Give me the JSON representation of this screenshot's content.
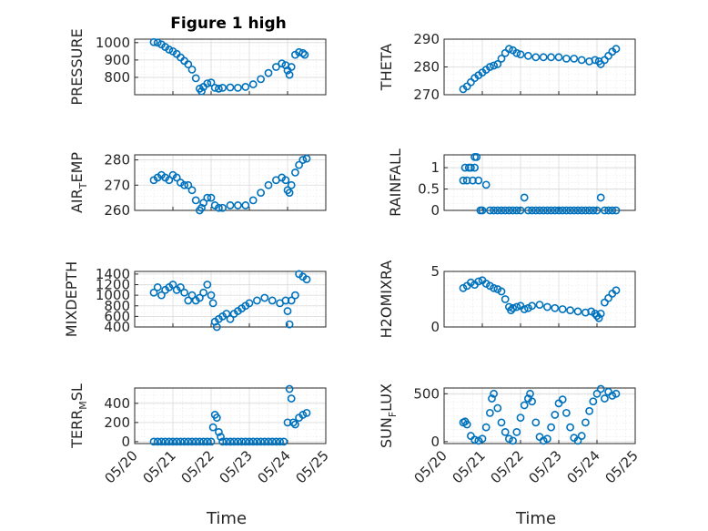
{
  "figure": {
    "title": "Figure 1 high",
    "marker_color": "#0072BD"
  },
  "chart_data": [
    {
      "id": "pressure",
      "type": "scatter",
      "ylabel": "PRESSURE",
      "xlabel": "",
      "xlim": [
        "05/20",
        "05/25"
      ],
      "ylim": [
        700,
        1020
      ],
      "yticks": [
        800,
        900,
        1000
      ],
      "xticklabels_visible": false,
      "points": [
        [
          0.5,
          1003
        ],
        [
          0.6,
          1000
        ],
        [
          0.7,
          990
        ],
        [
          0.8,
          975
        ],
        [
          0.9,
          960
        ],
        [
          1.0,
          950
        ],
        [
          1.1,
          935
        ],
        [
          1.2,
          915
        ],
        [
          1.3,
          895
        ],
        [
          1.4,
          875
        ],
        [
          1.5,
          845
        ],
        [
          1.6,
          795
        ],
        [
          1.7,
          735
        ],
        [
          1.75,
          720
        ],
        [
          1.8,
          745
        ],
        [
          1.9,
          765
        ],
        [
          2.0,
          770
        ],
        [
          2.1,
          740
        ],
        [
          2.2,
          735
        ],
        [
          2.3,
          740
        ],
        [
          2.5,
          742
        ],
        [
          2.7,
          740
        ],
        [
          2.9,
          745
        ],
        [
          3.1,
          760
        ],
        [
          3.3,
          790
        ],
        [
          3.5,
          825
        ],
        [
          3.7,
          860
        ],
        [
          3.85,
          880
        ],
        [
          3.95,
          870
        ],
        [
          4.0,
          840
        ],
        [
          4.05,
          815
        ],
        [
          4.1,
          860
        ],
        [
          4.2,
          930
        ],
        [
          4.3,
          945
        ],
        [
          4.4,
          940
        ],
        [
          4.45,
          930
        ]
      ]
    },
    {
      "id": "theta",
      "type": "scatter",
      "ylabel": "THETA",
      "xlabel": "",
      "xlim": [
        "05/20",
        "05/25"
      ],
      "ylim": [
        270,
        290
      ],
      "yticks": [
        270,
        280,
        290
      ],
      "xticklabels_visible": false,
      "points": [
        [
          0.5,
          272
        ],
        [
          0.6,
          273
        ],
        [
          0.7,
          274.5
        ],
        [
          0.8,
          276
        ],
        [
          0.9,
          277
        ],
        [
          1.0,
          278
        ],
        [
          1.1,
          279
        ],
        [
          1.2,
          280
        ],
        [
          1.3,
          280.5
        ],
        [
          1.4,
          281
        ],
        [
          1.5,
          283
        ],
        [
          1.6,
          285
        ],
        [
          1.7,
          286.5
        ],
        [
          1.8,
          286
        ],
        [
          1.9,
          285
        ],
        [
          2.0,
          284.5
        ],
        [
          2.2,
          284
        ],
        [
          2.4,
          283.5
        ],
        [
          2.6,
          283.5
        ],
        [
          2.8,
          283.5
        ],
        [
          3.0,
          283.5
        ],
        [
          3.2,
          283
        ],
        [
          3.4,
          283
        ],
        [
          3.6,
          282.5
        ],
        [
          3.8,
          282
        ],
        [
          3.95,
          282.5
        ],
        [
          4.05,
          282
        ],
        [
          4.1,
          281
        ],
        [
          4.2,
          282.5
        ],
        [
          4.3,
          284
        ],
        [
          4.4,
          285.5
        ],
        [
          4.5,
          286.5
        ]
      ]
    },
    {
      "id": "air_temp",
      "type": "scatter",
      "ylabel_main": "AIR",
      "ylabel_sub": "T",
      "ylabel_rest": "EMP",
      "xlabel": "",
      "xlim": [
        "05/20",
        "05/25"
      ],
      "ylim": [
        260,
        282
      ],
      "yticks": [
        260,
        270,
        280
      ],
      "xticklabels_visible": false,
      "points": [
        [
          0.5,
          272
        ],
        [
          0.6,
          273
        ],
        [
          0.7,
          274
        ],
        [
          0.8,
          273
        ],
        [
          0.9,
          272
        ],
        [
          1.0,
          274
        ],
        [
          1.1,
          273
        ],
        [
          1.2,
          271
        ],
        [
          1.3,
          270
        ],
        [
          1.4,
          270
        ],
        [
          1.5,
          268
        ],
        [
          1.6,
          264
        ],
        [
          1.7,
          260
        ],
        [
          1.75,
          261
        ],
        [
          1.8,
          263
        ],
        [
          1.9,
          265
        ],
        [
          2.0,
          265
        ],
        [
          2.1,
          262
        ],
        [
          2.2,
          261
        ],
        [
          2.3,
          261
        ],
        [
          2.5,
          262
        ],
        [
          2.7,
          262
        ],
        [
          2.9,
          262
        ],
        [
          3.1,
          264
        ],
        [
          3.3,
          267
        ],
        [
          3.5,
          270
        ],
        [
          3.7,
          272
        ],
        [
          3.85,
          273
        ],
        [
          3.95,
          272
        ],
        [
          4.0,
          268
        ],
        [
          4.05,
          267
        ],
        [
          4.1,
          270
        ],
        [
          4.2,
          275
        ],
        [
          4.3,
          278
        ],
        [
          4.4,
          280
        ],
        [
          4.5,
          280.5
        ]
      ]
    },
    {
      "id": "rainfall",
      "type": "scatter",
      "ylabel": "RAINFALL",
      "xlabel": "",
      "xlim": [
        "05/20",
        "05/25"
      ],
      "ylim": [
        0,
        1.3
      ],
      "yticks": [
        0,
        0.5,
        1
      ],
      "xticklabels_visible": false,
      "points": [
        [
          0.5,
          0.7
        ],
        [
          0.55,
          1.0
        ],
        [
          0.6,
          0.7
        ],
        [
          0.65,
          1.0
        ],
        [
          0.7,
          1.0
        ],
        [
          0.75,
          0.7
        ],
        [
          0.8,
          1.0
        ],
        [
          0.8,
          1.25
        ],
        [
          0.85,
          1.25
        ],
        [
          0.9,
          0.7
        ],
        [
          0.95,
          0
        ],
        [
          1.0,
          0
        ],
        [
          1.1,
          0.6
        ],
        [
          1.2,
          0
        ],
        [
          1.3,
          0
        ],
        [
          1.4,
          0
        ],
        [
          1.5,
          0
        ],
        [
          1.6,
          0
        ],
        [
          1.7,
          0
        ],
        [
          1.8,
          0
        ],
        [
          1.9,
          0
        ],
        [
          2.0,
          0
        ],
        [
          2.1,
          0.3
        ],
        [
          2.2,
          0
        ],
        [
          2.3,
          0
        ],
        [
          2.4,
          0
        ],
        [
          2.5,
          0
        ],
        [
          2.6,
          0
        ],
        [
          2.7,
          0
        ],
        [
          2.8,
          0
        ],
        [
          2.9,
          0
        ],
        [
          3.0,
          0
        ],
        [
          3.1,
          0
        ],
        [
          3.2,
          0
        ],
        [
          3.3,
          0
        ],
        [
          3.4,
          0
        ],
        [
          3.5,
          0
        ],
        [
          3.6,
          0
        ],
        [
          3.7,
          0
        ],
        [
          3.8,
          0
        ],
        [
          3.9,
          0
        ],
        [
          4.0,
          0
        ],
        [
          4.1,
          0.3
        ],
        [
          4.2,
          0
        ],
        [
          4.3,
          0
        ],
        [
          4.4,
          0
        ],
        [
          4.5,
          0
        ]
      ]
    },
    {
      "id": "mixdepth",
      "type": "scatter",
      "ylabel": "MIXDEPTH",
      "xlabel": "",
      "xlim": [
        "05/20",
        "05/25"
      ],
      "ylim": [
        400,
        1450
      ],
      "yticks": [
        400,
        600,
        800,
        1000,
        1200,
        1400
      ],
      "xticklabels_visible": false,
      "points": [
        [
          0.5,
          1050
        ],
        [
          0.6,
          1150
        ],
        [
          0.7,
          1000
        ],
        [
          0.8,
          1100
        ],
        [
          0.9,
          1150
        ],
        [
          1.0,
          1200
        ],
        [
          1.1,
          1100
        ],
        [
          1.2,
          1150
        ],
        [
          1.3,
          1050
        ],
        [
          1.4,
          900
        ],
        [
          1.5,
          1000
        ],
        [
          1.6,
          900
        ],
        [
          1.7,
          950
        ],
        [
          1.8,
          1050
        ],
        [
          1.9,
          1200
        ],
        [
          2.0,
          1000
        ],
        [
          2.05,
          850
        ],
        [
          2.1,
          500
        ],
        [
          2.15,
          400
        ],
        [
          2.2,
          550
        ],
        [
          2.3,
          600
        ],
        [
          2.4,
          650
        ],
        [
          2.5,
          550
        ],
        [
          2.6,
          650
        ],
        [
          2.7,
          700
        ],
        [
          2.8,
          750
        ],
        [
          2.9,
          800
        ],
        [
          3.0,
          850
        ],
        [
          3.2,
          900
        ],
        [
          3.4,
          950
        ],
        [
          3.6,
          900
        ],
        [
          3.8,
          850
        ],
        [
          3.95,
          900
        ],
        [
          4.0,
          700
        ],
        [
          4.05,
          450
        ],
        [
          4.1,
          900
        ],
        [
          4.2,
          1000
        ],
        [
          4.3,
          1400
        ],
        [
          4.4,
          1350
        ],
        [
          4.5,
          1300
        ]
      ]
    },
    {
      "id": "h2omixra",
      "type": "scatter",
      "ylabel": "H2OMIXRA",
      "xlabel": "",
      "xlim": [
        "05/20",
        "05/25"
      ],
      "ylim": [
        0,
        5
      ],
      "yticks": [
        0,
        5
      ],
      "xticklabels_visible": false,
      "points": [
        [
          0.5,
          3.5
        ],
        [
          0.6,
          3.7
        ],
        [
          0.7,
          4.0
        ],
        [
          0.8,
          3.8
        ],
        [
          0.9,
          4.1
        ],
        [
          1.0,
          4.2
        ],
        [
          1.1,
          3.9
        ],
        [
          1.2,
          3.7
        ],
        [
          1.3,
          3.5
        ],
        [
          1.4,
          3.4
        ],
        [
          1.5,
          3.2
        ],
        [
          1.6,
          2.5
        ],
        [
          1.7,
          1.8
        ],
        [
          1.75,
          1.5
        ],
        [
          1.8,
          1.7
        ],
        [
          1.9,
          1.8
        ],
        [
          2.0,
          1.9
        ],
        [
          2.1,
          1.6
        ],
        [
          2.2,
          1.7
        ],
        [
          2.3,
          1.9
        ],
        [
          2.5,
          2.0
        ],
        [
          2.7,
          1.8
        ],
        [
          2.9,
          1.7
        ],
        [
          3.1,
          1.6
        ],
        [
          3.3,
          1.5
        ],
        [
          3.5,
          1.4
        ],
        [
          3.7,
          1.3
        ],
        [
          3.85,
          1.4
        ],
        [
          3.95,
          1.2
        ],
        [
          4.0,
          1.0
        ],
        [
          4.05,
          0.8
        ],
        [
          4.1,
          1.2
        ],
        [
          4.2,
          2.2
        ],
        [
          4.3,
          2.6
        ],
        [
          4.4,
          3.0
        ],
        [
          4.5,
          3.3
        ]
      ]
    },
    {
      "id": "terr_msl",
      "type": "scatter",
      "ylabel_main": "TERR",
      "ylabel_sub": "M",
      "ylabel_rest": "SL",
      "xlabel": "Time",
      "xlim": [
        "05/20",
        "05/25"
      ],
      "ylim": [
        -20,
        560
      ],
      "yticks": [
        0,
        200,
        400
      ],
      "xticklabels_visible": true,
      "points": [
        [
          0.5,
          0
        ],
        [
          0.6,
          0
        ],
        [
          0.7,
          0
        ],
        [
          0.8,
          0
        ],
        [
          0.9,
          0
        ],
        [
          1.0,
          0
        ],
        [
          1.1,
          0
        ],
        [
          1.2,
          0
        ],
        [
          1.3,
          0
        ],
        [
          1.4,
          0
        ],
        [
          1.5,
          0
        ],
        [
          1.6,
          0
        ],
        [
          1.7,
          0
        ],
        [
          1.8,
          0
        ],
        [
          1.9,
          0
        ],
        [
          2.0,
          0
        ],
        [
          2.05,
          150
        ],
        [
          2.1,
          280
        ],
        [
          2.15,
          250
        ],
        [
          2.2,
          100
        ],
        [
          2.25,
          50
        ],
        [
          2.3,
          0
        ],
        [
          2.4,
          0
        ],
        [
          2.5,
          0
        ],
        [
          2.6,
          0
        ],
        [
          2.7,
          0
        ],
        [
          2.8,
          0
        ],
        [
          2.9,
          0
        ],
        [
          3.0,
          0
        ],
        [
          3.1,
          0
        ],
        [
          3.2,
          0
        ],
        [
          3.3,
          0
        ],
        [
          3.4,
          0
        ],
        [
          3.5,
          0
        ],
        [
          3.6,
          0
        ],
        [
          3.7,
          0
        ],
        [
          3.8,
          0
        ],
        [
          3.9,
          0
        ],
        [
          4.0,
          200
        ],
        [
          4.05,
          550
        ],
        [
          4.1,
          450
        ],
        [
          4.15,
          200
        ],
        [
          4.2,
          180
        ],
        [
          4.3,
          250
        ],
        [
          4.4,
          280
        ],
        [
          4.5,
          300
        ]
      ]
    },
    {
      "id": "sun_flux",
      "type": "scatter",
      "ylabel_main": "SUN",
      "ylabel_sub": "F",
      "ylabel_rest": "LUX",
      "xlabel": "Time",
      "xlim": [
        "05/20",
        "05/25"
      ],
      "ylim": [
        -20,
        560
      ],
      "yticks": [
        0,
        500
      ],
      "xticklabels_visible": true,
      "points": [
        [
          0.5,
          200
        ],
        [
          0.55,
          210
        ],
        [
          0.6,
          180
        ],
        [
          0.7,
          60
        ],
        [
          0.8,
          20
        ],
        [
          0.9,
          10
        ],
        [
          1.0,
          30
        ],
        [
          1.1,
          150
        ],
        [
          1.2,
          300
        ],
        [
          1.25,
          450
        ],
        [
          1.3,
          500
        ],
        [
          1.4,
          350
        ],
        [
          1.5,
          200
        ],
        [
          1.6,
          100
        ],
        [
          1.7,
          30
        ],
        [
          1.8,
          10
        ],
        [
          1.9,
          100
        ],
        [
          2.0,
          250
        ],
        [
          2.1,
          380
        ],
        [
          2.2,
          450
        ],
        [
          2.25,
          500
        ],
        [
          2.3,
          420
        ],
        [
          2.4,
          200
        ],
        [
          2.5,
          50
        ],
        [
          2.6,
          10
        ],
        [
          2.7,
          30
        ],
        [
          2.8,
          150
        ],
        [
          2.9,
          280
        ],
        [
          3.0,
          400
        ],
        [
          3.1,
          440
        ],
        [
          3.2,
          300
        ],
        [
          3.3,
          150
        ],
        [
          3.4,
          40
        ],
        [
          3.5,
          10
        ],
        [
          3.6,
          60
        ],
        [
          3.7,
          200
        ],
        [
          3.8,
          320
        ],
        [
          3.9,
          420
        ],
        [
          4.0,
          500
        ],
        [
          4.1,
          550
        ],
        [
          4.2,
          450
        ],
        [
          4.3,
          520
        ],
        [
          4.4,
          480
        ],
        [
          4.5,
          500
        ]
      ]
    }
  ],
  "xticks": [
    "05/20",
    "05/21",
    "05/22",
    "05/23",
    "05/24",
    "05/25"
  ]
}
